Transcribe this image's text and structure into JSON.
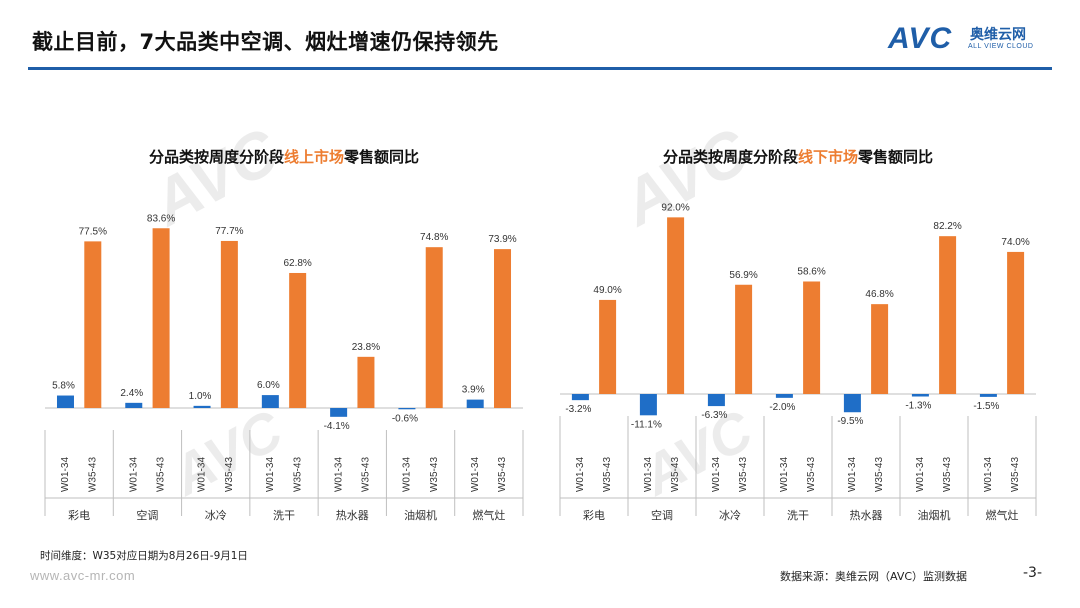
{
  "header": {
    "title": "截止目前，7大品类中空调、烟灶增速仍保持领先",
    "logo_text": "AVC",
    "logo_cn": "奥维云网",
    "logo_en": "ALL VIEW CLOUD"
  },
  "footer": {
    "note": "时间维度：W35对应日期为8月26日-9月1日",
    "website": "www.avc-mr.com",
    "source": "数据来源：奥维云网（AVC）监测数据",
    "page": "-3-"
  },
  "colors": {
    "accent_blue": "#1f5ea8",
    "bar_blue": "#1f6ec7",
    "bar_orange": "#ed7d31",
    "title_highlight": "#ed7d31"
  },
  "chart_data": [
    {
      "type": "bar",
      "title_pre": "分品类按周度分阶段",
      "title_hl": "线上市场",
      "title_post": "零售额同比",
      "categories": [
        "彩电",
        "空调",
        "冰冷",
        "洗干",
        "热水器",
        "油烟机",
        "燃气灶"
      ],
      "x_ticks": [
        "W01-34",
        "W35-43"
      ],
      "series": [
        {
          "name": "W01-34",
          "values": [
            5.8,
            2.4,
            1.0,
            6.0,
            -4.1,
            -0.6,
            3.9
          ],
          "labels": [
            "5.8%",
            "2.4%",
            "1.0%",
            "6.0%",
            "-4.1%",
            "-0.6%",
            "3.9%"
          ]
        },
        {
          "name": "W35-43",
          "values": [
            77.5,
            83.6,
            77.7,
            62.8,
            23.8,
            74.8,
            73.9
          ],
          "labels": [
            "77.5%",
            "83.6%",
            "77.7%",
            "62.8%",
            "23.8%",
            "74.8%",
            "73.9%"
          ]
        }
      ],
      "ylim": [
        -5,
        90
      ]
    },
    {
      "type": "bar",
      "title_pre": "分品类按周度分阶段",
      "title_hl": "线下市场",
      "title_post": "零售额同比",
      "categories": [
        "彩电",
        "空调",
        "冰冷",
        "洗干",
        "热水器",
        "油烟机",
        "燃气灶"
      ],
      "x_ticks": [
        "W01-34",
        "W35-43"
      ],
      "series": [
        {
          "name": "W01-34",
          "values": [
            -3.2,
            -11.1,
            -6.3,
            -2.0,
            -9.5,
            -1.3,
            -1.5
          ],
          "labels": [
            "-3.2%",
            "-11.1%",
            "-6.3%",
            "-2.0%",
            "-9.5%",
            "-1.3%",
            "-1.5%"
          ]
        },
        {
          "name": "W35-43",
          "values": [
            49.0,
            92.0,
            56.9,
            58.6,
            46.8,
            82.2,
            74.0
          ],
          "labels": [
            "49.0%",
            "92.0%",
            "56.9%",
            "58.6%",
            "46.8%",
            "82.2%",
            "74.0%"
          ]
        }
      ],
      "ylim": [
        -12,
        95
      ]
    }
  ]
}
